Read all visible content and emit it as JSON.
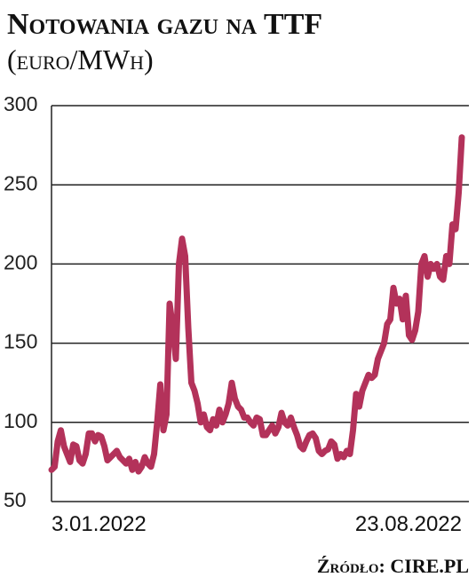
{
  "chart_data": {
    "type": "line",
    "title": "Notowania gazu na TTF",
    "subtitle": "(euro/MWh)",
    "source": "Źródło: CIRE.PL",
    "categories": [
      "3.01.2022",
      null,
      null,
      null,
      null,
      null,
      null,
      null,
      null,
      null,
      null,
      null,
      null,
      null,
      null,
      null,
      null,
      null,
      null,
      null,
      null,
      null,
      null,
      null,
      null,
      null,
      null,
      null,
      null,
      null,
      null,
      null,
      null,
      null,
      null,
      null,
      null,
      null,
      null,
      null,
      null,
      null,
      null,
      null,
      null,
      null,
      null,
      null,
      null,
      null,
      null,
      null,
      null,
      null,
      null,
      null,
      null,
      null,
      null,
      null,
      null,
      null,
      null,
      null,
      null,
      null,
      null,
      null,
      null,
      null,
      null,
      null,
      null,
      null,
      null,
      null,
      null,
      null,
      null,
      null,
      null,
      null,
      null,
      null,
      null,
      null,
      null,
      null,
      null,
      null,
      null,
      null,
      null,
      null,
      null,
      null,
      null,
      null,
      null,
      null,
      null,
      null,
      null,
      null,
      null,
      null,
      null,
      null,
      null,
      null,
      null,
      null,
      null,
      null,
      null,
      null,
      null,
      null,
      null,
      null,
      null,
      null,
      null,
      null,
      null,
      null,
      null,
      null,
      null,
      null,
      null,
      null,
      "23.08.2022"
    ],
    "series": [
      {
        "color": "#b3325a",
        "values": [
          70,
          72,
          88,
          95,
          85,
          80,
          75,
          86,
          85,
          76,
          74,
          80,
          93,
          93,
          88,
          92,
          91,
          85,
          76,
          78,
          80,
          82,
          78,
          76,
          74,
          77,
          70,
          75,
          69,
          72,
          78,
          74,
          72,
          80,
          100,
          124,
          95,
          105,
          175,
          160,
          140,
          200,
          216,
          205,
          160,
          125,
          120,
          112,
          100,
          105,
          97,
          95,
          102,
          98,
          108,
          100,
          105,
          112,
          125,
          115,
          110,
          108,
          103,
          103,
          100,
          98,
          103,
          102,
          92,
          92,
          95,
          98,
          93,
          97,
          106,
          100,
          98,
          103,
          97,
          92,
          85,
          83,
          88,
          92,
          93,
          90,
          82,
          80,
          82,
          83,
          88,
          86,
          77,
          80,
          78,
          82,
          80,
          95,
          118,
          110,
          120,
          125,
          130,
          128,
          130,
          140,
          145,
          150,
          162,
          165,
          185,
          175,
          178,
          165,
          180,
          155,
          152,
          158,
          170,
          200,
          205,
          192,
          200,
          197,
          200,
          192,
          190,
          205,
          200,
          225,
          222,
          245,
          280
        ]
      }
    ],
    "ylim": [
      50,
      300
    ],
    "yticks": [
      50,
      100,
      150,
      200,
      250,
      300
    ],
    "grid": true
  }
}
